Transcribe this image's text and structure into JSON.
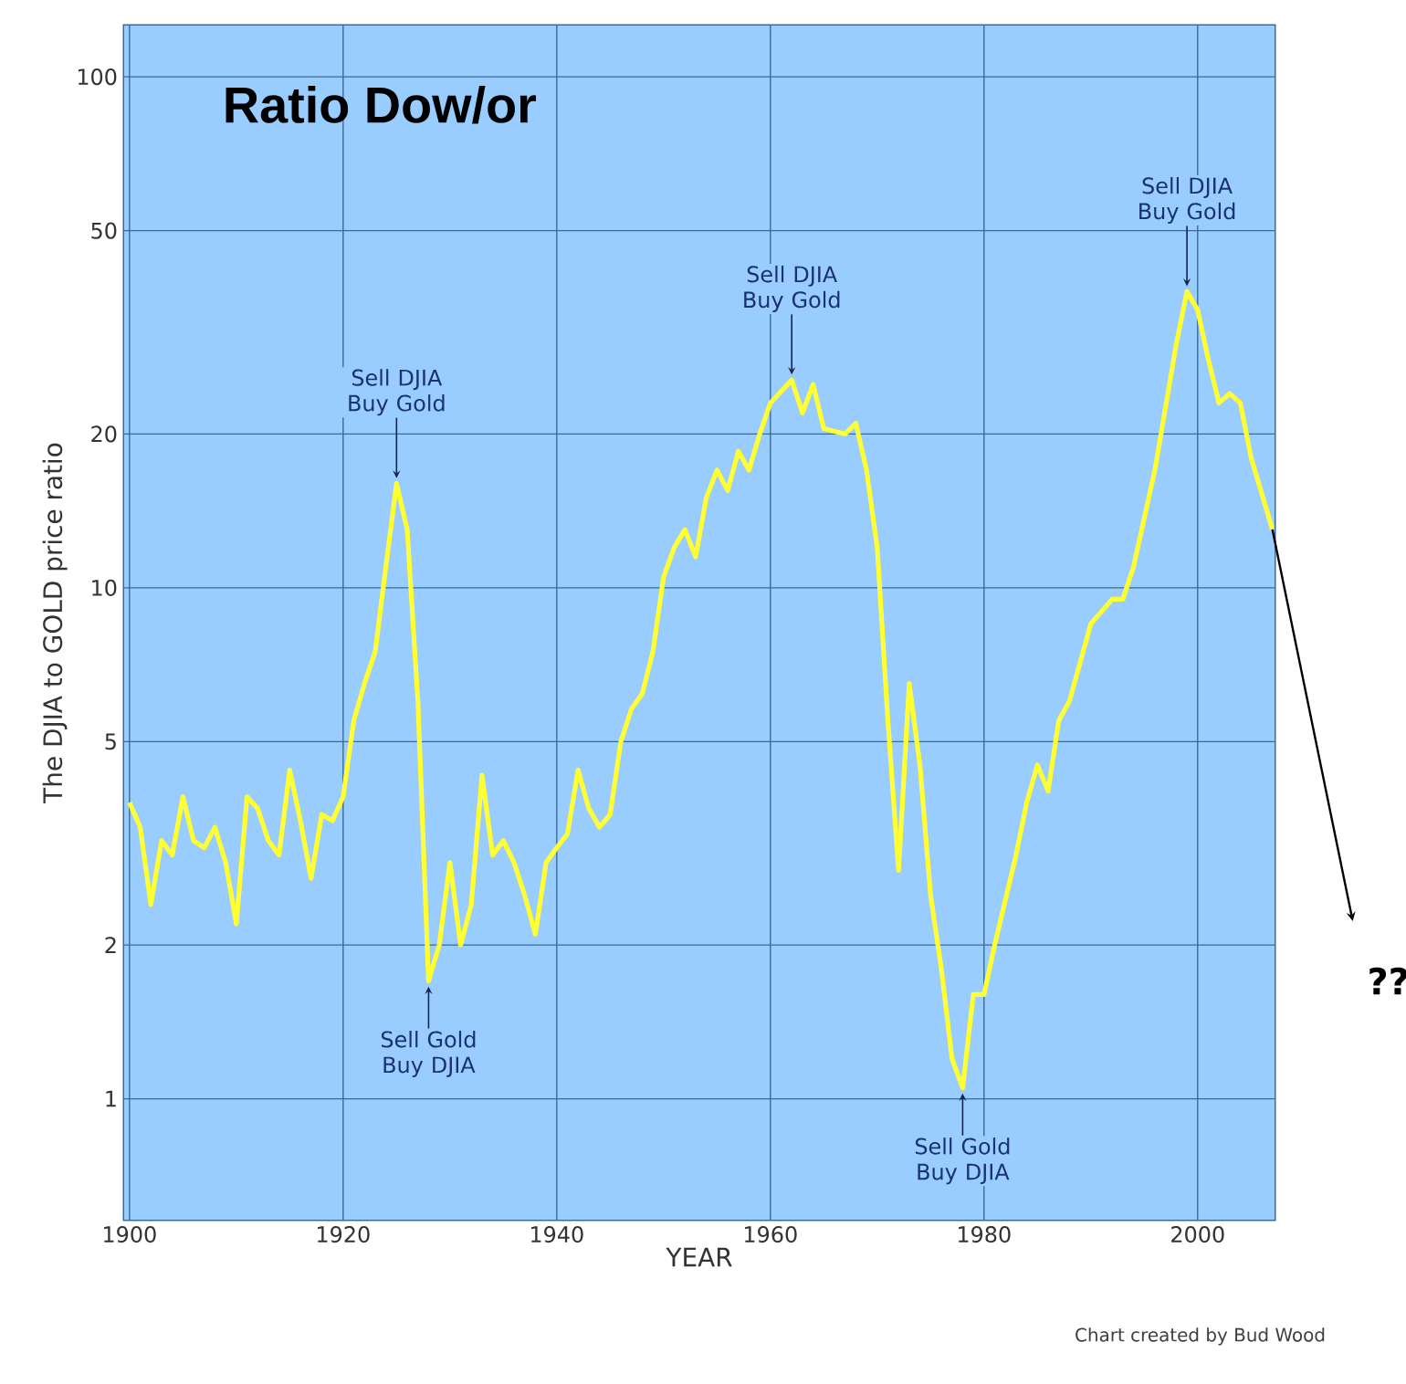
{
  "chart_data": {
    "type": "line",
    "title": "Ratio Dow/or",
    "xlabel": "YEAR",
    "ylabel": "The DJIA to GOLD price ratio",
    "log": "y",
    "grid": true,
    "marker": "none",
    "line_style": "solid",
    "xlim": [
      1899.5,
      2007.2
    ],
    "ylim": [
      0.58,
      126
    ],
    "xticks": [
      1900,
      1920,
      1940,
      1960,
      1980,
      2000
    ],
    "yticks": [
      1,
      2,
      5,
      10,
      20,
      50,
      100
    ],
    "x": [
      1900,
      1901,
      1902,
      1903,
      1904,
      1905,
      1906,
      1907,
      1908,
      1909,
      1910,
      1911,
      1912,
      1913,
      1914,
      1915,
      1916,
      1917,
      1918,
      1919,
      1920,
      1921,
      1922,
      1923,
      1924,
      1925,
      1926,
      1927,
      1928,
      1929,
      1930,
      1931,
      1932,
      1933,
      1934,
      1935,
      1936,
      1937,
      1938,
      1939,
      1940,
      1941,
      1942,
      1943,
      1944,
      1945,
      1946,
      1947,
      1948,
      1949,
      1950,
      1951,
      1952,
      1953,
      1954,
      1955,
      1956,
      1957,
      1958,
      1959,
      1960,
      1962,
      1963,
      1964,
      1965,
      1967,
      1968,
      1969,
      1970,
      1971,
      1972,
      1973,
      1974,
      1975,
      1976,
      1977,
      1978,
      1979,
      1980,
      1981,
      1983,
      1984,
      1985,
      1986,
      1987,
      1988,
      1990,
      1992,
      1993,
      1994,
      1996,
      1998,
      1999,
      2000,
      2001,
      2002,
      2003,
      2004,
      2005,
      2007
    ],
    "series": [
      {
        "color": "#ffff33",
        "values": [
          3.8,
          3.4,
          2.4,
          3.2,
          3.0,
          3.9,
          3.2,
          3.1,
          3.4,
          2.9,
          2.2,
          3.9,
          3.7,
          3.2,
          3.0,
          4.4,
          3.5,
          2.7,
          3.6,
          3.5,
          3.9,
          5.5,
          6.5,
          7.5,
          11,
          16,
          13,
          6,
          1.7,
          2.0,
          2.9,
          2.0,
          2.4,
          4.3,
          3.0,
          3.2,
          2.9,
          2.5,
          2.1,
          2.9,
          3.1,
          3.3,
          4.4,
          3.7,
          3.4,
          3.6,
          5.0,
          5.8,
          6.2,
          7.5,
          10.5,
          12,
          13,
          11.5,
          15,
          17,
          15.5,
          18.5,
          17,
          20,
          23,
          25.5,
          22,
          25,
          20.5,
          20,
          21,
          17,
          12,
          5.5,
          2.8,
          6.5,
          4.5,
          2.5,
          1.8,
          1.2,
          1.05,
          1.6,
          1.6,
          2.0,
          3.0,
          3.8,
          4.5,
          4.0,
          5.5,
          6.0,
          8.5,
          9.5,
          9.5,
          11,
          17,
          30,
          38,
          35,
          28,
          23,
          24,
          23,
          18,
          13
        ]
      }
    ],
    "annotations": [
      {
        "text": "Sell DJIA Buy Gold",
        "x": 1925,
        "y": 16
      },
      {
        "text": "Sell DJIA Buy Gold",
        "x": 1962,
        "y": 25.5
      },
      {
        "text": "Sell DJIA Buy Gold",
        "x": 1999,
        "y": 38
      },
      {
        "text": "Sell Gold Buy DJIA",
        "x": 1928,
        "y": 1.7
      },
      {
        "text": "Sell Gold Buy DJIA",
        "x": 1978,
        "y": 1.05
      },
      "??",
      "Chart created by Bud Wood"
    ]
  }
}
